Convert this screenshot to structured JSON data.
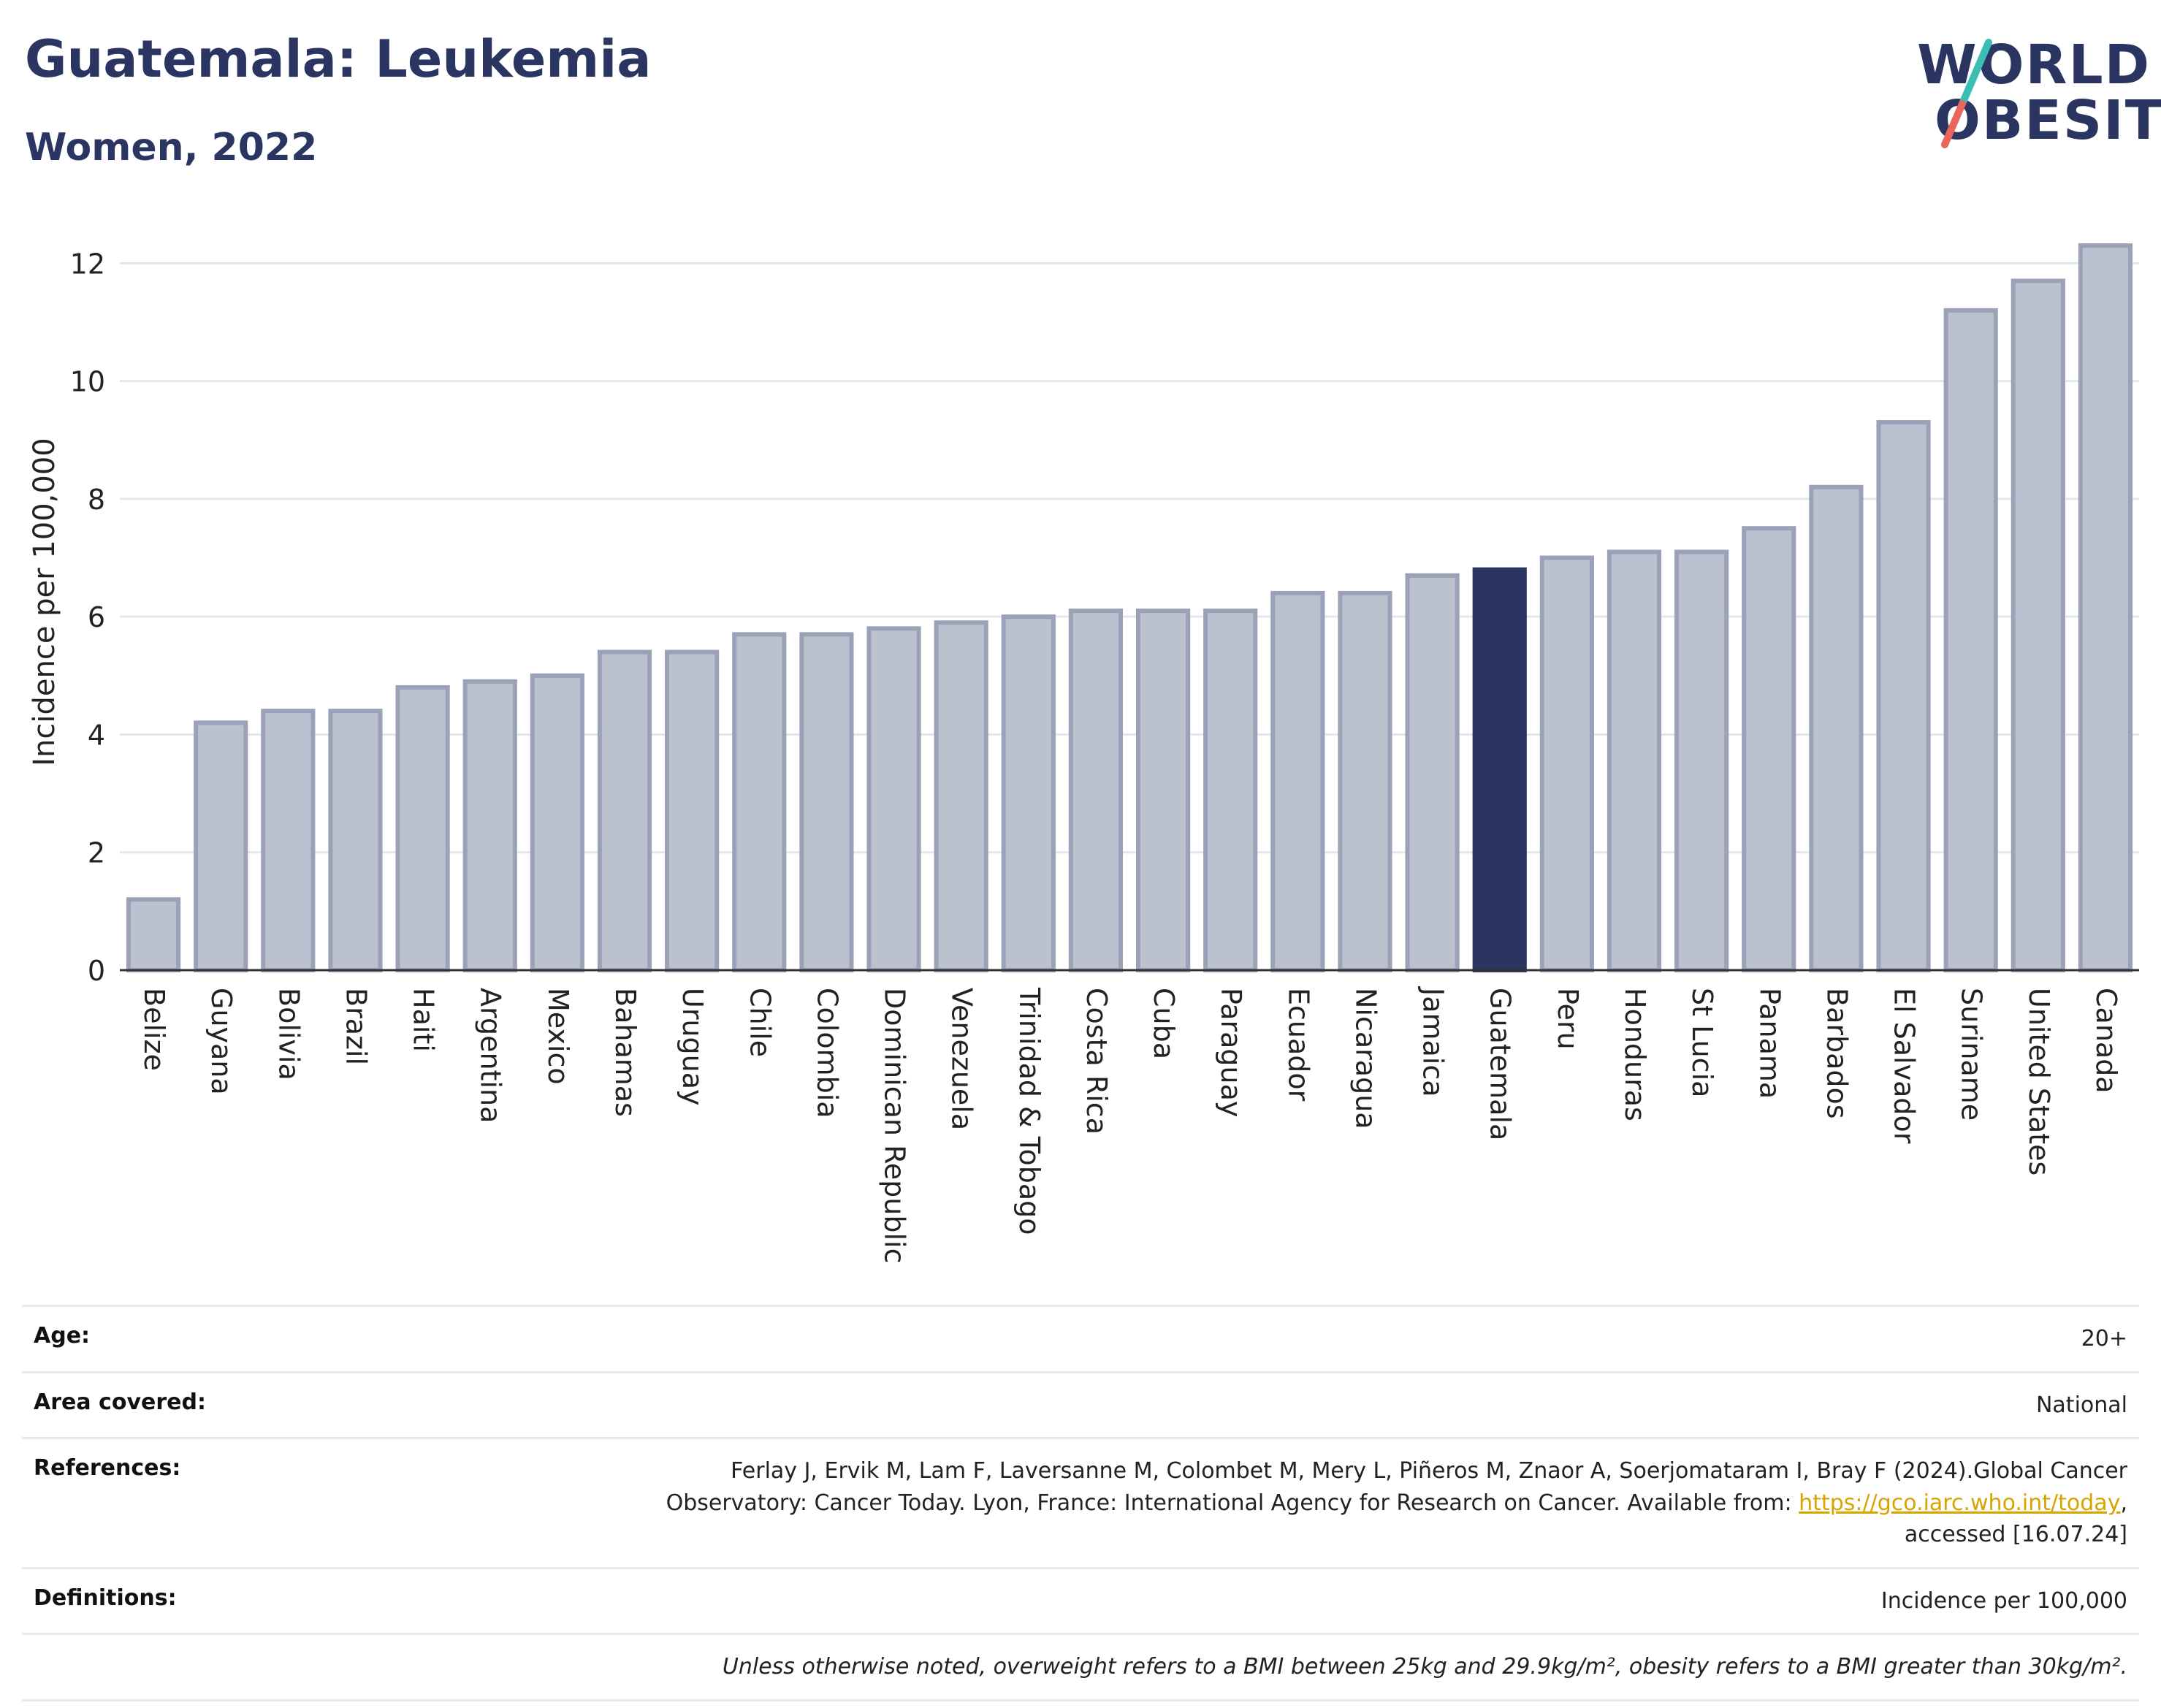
{
  "header": {
    "title": "Guatemala: Leukemia",
    "subtitle": "Women, 2022"
  },
  "logo": {
    "line1": "WORLD",
    "line2": "OBESITY",
    "accent_teal": "#3bbfb5",
    "accent_coral": "#e8665a",
    "text_color": "#2b3561"
  },
  "chart_data": {
    "type": "bar",
    "ylabel": "Incidence per 100,000",
    "ylim": [
      0,
      12.5
    ],
    "yticks": [
      0,
      2,
      4,
      6,
      8,
      10,
      12
    ],
    "grid": true,
    "highlight": "Guatemala",
    "colors": {
      "default": "#bcc1cf",
      "default_edge": "#9ba2b8",
      "highlight": "#2b3561"
    },
    "categories": [
      "Belize",
      "Guyana",
      "Bolivia",
      "Brazil",
      "Haiti",
      "Argentina",
      "Mexico",
      "Bahamas",
      "Uruguay",
      "Chile",
      "Colombia",
      "Dominican Republic",
      "Venezuela",
      "Trinidad & Tobago",
      "Costa Rica",
      "Cuba",
      "Paraguay",
      "Ecuador",
      "Nicaragua",
      "Jamaica",
      "Guatemala",
      "Peru",
      "Honduras",
      "St Lucia",
      "Panama",
      "Barbados",
      "El Salvador",
      "Suriname",
      "United States",
      "Canada"
    ],
    "values": [
      1.2,
      4.2,
      4.4,
      4.4,
      4.8,
      4.9,
      5.0,
      5.4,
      5.4,
      5.7,
      5.7,
      5.8,
      5.9,
      6.0,
      6.1,
      6.1,
      6.1,
      6.4,
      6.4,
      6.7,
      6.8,
      7.0,
      7.1,
      7.1,
      7.5,
      8.2,
      9.3,
      11.2,
      11.7,
      12.3
    ]
  },
  "info": {
    "age_label": "Age:",
    "age_value": "20+",
    "area_label": "Area covered:",
    "area_value": "National",
    "references_label": "References:",
    "references_line1": "Ferlay J, Ervik M, Lam F, Laversanne M, Colombet M, Mery L, Piñeros M, Znaor A, Soerjomataram I, Bray F (2024).Global Cancer",
    "references_line2": "Observatory: Cancer Today. Lyon, France: International Agency for Research on Cancer. Available from: ",
    "references_link": "https://gco.iarc.who.int/today",
    "references_line2_end": ",",
    "references_line3": "accessed [16.07.24]",
    "definitions_label": "Definitions:",
    "definitions_value": "Incidence per 100,000",
    "note": "Unless otherwise noted, overweight refers to a BMI between 25kg and 29.9kg/m², obesity refers to a BMI greater than 30kg/m²."
  }
}
